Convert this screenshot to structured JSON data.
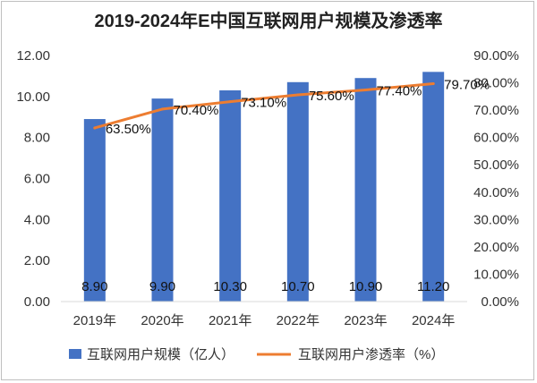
{
  "chart_data": {
    "type": "bar",
    "title": "2019-2024年E中国互联网用户规模及渗透率",
    "categories": [
      "2019年",
      "2020年",
      "2021年",
      "2022年",
      "2023年",
      "2024年"
    ],
    "series": [
      {
        "name": "互联网用户规模（亿人）",
        "type": "bar",
        "axis": "left",
        "color": "#4472C4",
        "values": [
          8.9,
          9.9,
          10.3,
          10.7,
          10.9,
          11.2
        ],
        "labels": [
          "8.90",
          "9.90",
          "10.30",
          "10.70",
          "10.90",
          "11.20"
        ]
      },
      {
        "name": "互联网用户渗透率（%）",
        "type": "line",
        "axis": "right",
        "color": "#ED7D31",
        "values": [
          63.5,
          70.4,
          73.1,
          75.6,
          77.4,
          79.7
        ],
        "labels": [
          "63.50%",
          "70.40%",
          "73.10%",
          "75.60%",
          "77.40%",
          "79.70%"
        ]
      }
    ],
    "y_left": {
      "ylim": [
        0,
        12
      ],
      "ticks": [
        "0.00",
        "2.00",
        "4.00",
        "6.00",
        "8.00",
        "10.00",
        "12.00"
      ]
    },
    "y_right": {
      "ylim": [
        0,
        90
      ],
      "ticks": [
        "0.00%",
        "10.00%",
        "20.00%",
        "30.00%",
        "40.00%",
        "50.00%",
        "60.00%",
        "70.00%",
        "80.00%",
        "90.00%"
      ]
    },
    "grid": false,
    "legend_position": "bottom"
  }
}
